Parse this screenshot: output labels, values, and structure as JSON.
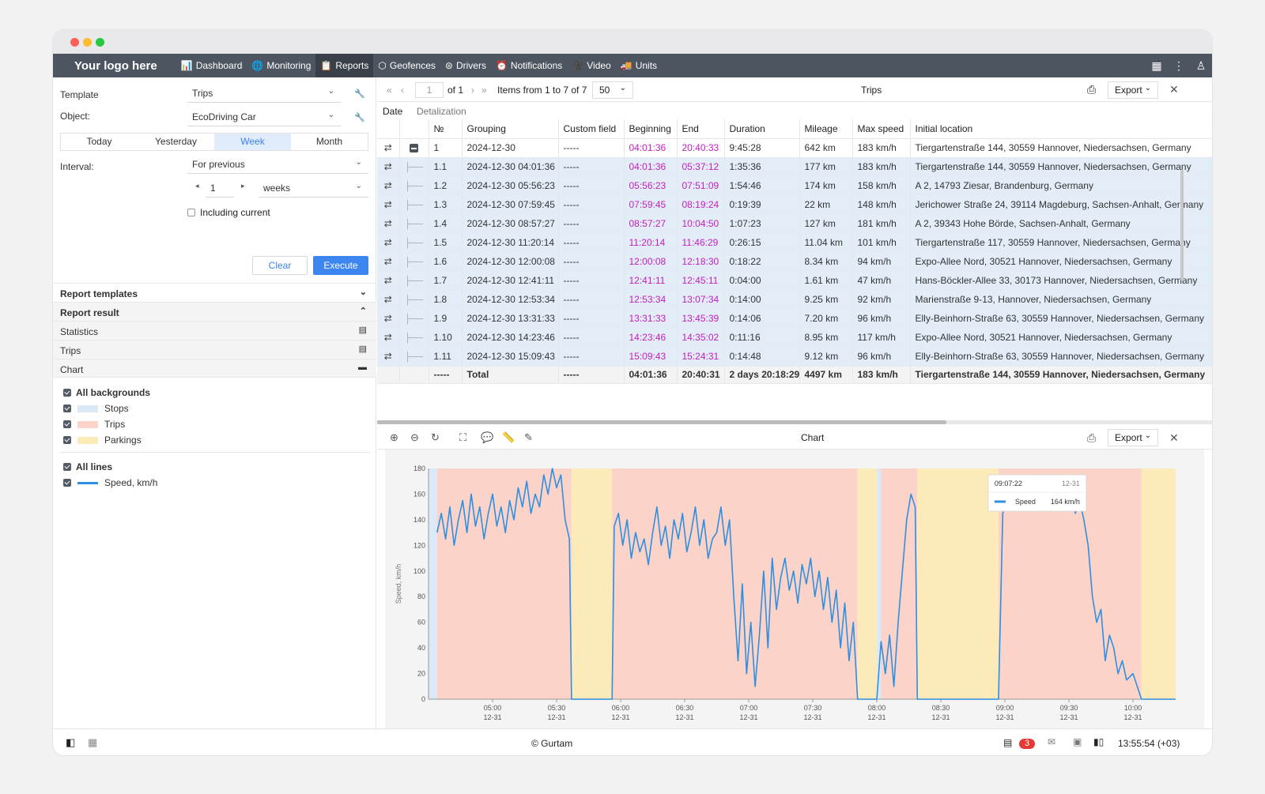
{
  "nav": {
    "logo": "Your logo here",
    "items": [
      {
        "label": "Dashboard",
        "icon": "📊"
      },
      {
        "label": "Monitoring",
        "icon": "🌐"
      },
      {
        "label": "Reports",
        "icon": "📋"
      },
      {
        "label": "Geofences",
        "icon": "⬡"
      },
      {
        "label": "Drivers",
        "icon": "⊜"
      },
      {
        "label": "Notifications",
        "icon": "⏰"
      },
      {
        "label": "Video",
        "icon": "🎥"
      },
      {
        "label": "Units",
        "icon": "🚚"
      }
    ]
  },
  "form": {
    "template_label": "Template",
    "template_value": "Trips",
    "object_label": "Object:",
    "object_value": "EcoDriving Car",
    "periods": [
      "Today",
      "Yesterday",
      "Week",
      "Month"
    ],
    "active_period": "Week",
    "interval_label": "Interval:",
    "interval_value": "For previous",
    "count_value": "1",
    "unit_value": "weeks",
    "including_current": "Including current",
    "clear": "Clear",
    "execute": "Execute"
  },
  "sections": {
    "report_templates": "Report templates",
    "report_result": "Report result",
    "statistics": "Statistics",
    "trips": "Trips",
    "chart": "Chart"
  },
  "legend": {
    "all_backgrounds": "All backgrounds",
    "stops": "Stops",
    "trips": "Trips",
    "parkings": "Parkings",
    "all_lines": "All lines",
    "speed": "Speed, km/h",
    "colors": {
      "stops": "#dbe9f7",
      "trips": "#fbd3c8",
      "parkings": "#fcebb8",
      "speed": "#2f8fe0"
    }
  },
  "table_toolbar": {
    "page": "1",
    "of": "of 1",
    "items": "Items from 1 to 7 of 7",
    "per_page": "50",
    "title": "Trips",
    "export": "Export"
  },
  "tabs": {
    "date": "Date",
    "detalization": "Detalization"
  },
  "columns": [
    "№",
    "Grouping",
    "Custom field",
    "Beginning",
    "End",
    "Duration",
    "Mileage",
    "Max speed",
    "Initial location"
  ],
  "rows": [
    {
      "n": "1",
      "g": "2024-12-30",
      "c": "-----",
      "b": "04:01:36",
      "e": "20:40:33",
      "d": "9:45:28",
      "m": "642 km",
      "s": "183 km/h",
      "l": "Tiergartenstraße 144, 30559 Hannover, Niedersachsen, Germany",
      "parent": true
    },
    {
      "n": "1.1",
      "g": "2024-12-30 04:01:36",
      "c": "-----",
      "b": "04:01:36",
      "e": "05:37:12",
      "d": "1:35:36",
      "m": "177 km",
      "s": "183 km/h",
      "l": "Tiergartenstraße 144, 30559 Hannover, Niedersachsen, Germany"
    },
    {
      "n": "1.2",
      "g": "2024-12-30 05:56:23",
      "c": "-----",
      "b": "05:56:23",
      "e": "07:51:09",
      "d": "1:54:46",
      "m": "174 km",
      "s": "158 km/h",
      "l": "A 2, 14793 Ziesar, Brandenburg, Germany"
    },
    {
      "n": "1.3",
      "g": "2024-12-30 07:59:45",
      "c": "-----",
      "b": "07:59:45",
      "e": "08:19:24",
      "d": "0:19:39",
      "m": "22 km",
      "s": "148 km/h",
      "l": "Jerichower Straße 24, 39114 Magdeburg, Sachsen-Anhalt, Germany"
    },
    {
      "n": "1.4",
      "g": "2024-12-30 08:57:27",
      "c": "-----",
      "b": "08:57:27",
      "e": "10:04:50",
      "d": "1:07:23",
      "m": "127 km",
      "s": "181 km/h",
      "l": "A 2, 39343 Hohe Börde, Sachsen-Anhalt, Germany"
    },
    {
      "n": "1.5",
      "g": "2024-12-30 11:20:14",
      "c": "-----",
      "b": "11:20:14",
      "e": "11:46:29",
      "d": "0:26:15",
      "m": "11.04 km",
      "s": "101 km/h",
      "l": "Tiergartenstraße 117, 30559 Hannover, Niedersachsen, Germany"
    },
    {
      "n": "1.6",
      "g": "2024-12-30 12:00:08",
      "c": "-----",
      "b": "12:00:08",
      "e": "12:18:30",
      "d": "0:18:22",
      "m": "8.34 km",
      "s": "94 km/h",
      "l": "Expo-Allee Nord, 30521 Hannover, Niedersachsen, Germany"
    },
    {
      "n": "1.7",
      "g": "2024-12-30 12:41:11",
      "c": "-----",
      "b": "12:41:11",
      "e": "12:45:11",
      "d": "0:04:00",
      "m": "1.61 km",
      "s": "47 km/h",
      "l": "Hans-Böckler-Allee 33, 30173 Hannover, Niedersachsen, Germany"
    },
    {
      "n": "1.8",
      "g": "2024-12-30 12:53:34",
      "c": "-----",
      "b": "12:53:34",
      "e": "13:07:34",
      "d": "0:14:00",
      "m": "9.25 km",
      "s": "92 km/h",
      "l": "Marienstraße 9-13, Hannover, Niedersachsen, Germany"
    },
    {
      "n": "1.9",
      "g": "2024-12-30 13:31:33",
      "c": "-----",
      "b": "13:31:33",
      "e": "13:45:39",
      "d": "0:14:06",
      "m": "7.20 km",
      "s": "96 km/h",
      "l": "Elly-Beinhorn-Straße 63, 30559 Hannover, Niedersachsen, Germany"
    },
    {
      "n": "1.10",
      "g": "2024-12-30 14:23:46",
      "c": "-----",
      "b": "14:23:46",
      "e": "14:35:02",
      "d": "0:11:16",
      "m": "8.95 km",
      "s": "117 km/h",
      "l": "Expo-Allee Nord, 30521 Hannover, Niedersachsen, Germany"
    },
    {
      "n": "1.11",
      "g": "2024-12-30 15:09:43",
      "c": "-----",
      "b": "15:09:43",
      "e": "15:24:31",
      "d": "0:14:48",
      "m": "9.12 km",
      "s": "96 km/h",
      "l": "Elly-Beinhorn-Straße 63, 30559 Hannover, Niedersachsen, Germany"
    }
  ],
  "total": {
    "n": "-----",
    "g": "Total",
    "c": "-----",
    "b": "04:01:36",
    "e": "20:40:31",
    "d": "2 days 20:18:29",
    "m": "4497 km",
    "s": "183 km/h",
    "l": "Tiergartenstraße 144, 30559 Hannover, Niedersachsen, Germany"
  },
  "chart_toolbar": {
    "title": "Chart",
    "export": "Export"
  },
  "chart_data": {
    "type": "line",
    "ylabel": "Speed, km/h",
    "ylim": [
      0,
      180
    ],
    "yticks": [
      0,
      20,
      40,
      60,
      80,
      100,
      120,
      140,
      160,
      180
    ],
    "xticks": [
      {
        "time": "05:00",
        "date": "12-31"
      },
      {
        "time": "05:30",
        "date": "12-31"
      },
      {
        "time": "06:00",
        "date": "12-31"
      },
      {
        "time": "06:30",
        "date": "12-31"
      },
      {
        "time": "07:00",
        "date": "12-31"
      },
      {
        "time": "07:30",
        "date": "12-31"
      },
      {
        "time": "08:00",
        "date": "12-31"
      },
      {
        "time": "08:30",
        "date": "12-31"
      },
      {
        "time": "09:00",
        "date": "12-31"
      },
      {
        "time": "09:30",
        "date": "12-31"
      },
      {
        "time": "10:00",
        "date": "12-31"
      }
    ],
    "xrange": [
      "04:30",
      "10:20"
    ],
    "backgrounds": [
      {
        "kind": "stops",
        "from": "04:30",
        "to": "04:34"
      },
      {
        "kind": "trips",
        "from": "04:34",
        "to": "05:37"
      },
      {
        "kind": "parkings",
        "from": "05:37",
        "to": "05:56"
      },
      {
        "kind": "trips",
        "from": "05:56",
        "to": "07:51"
      },
      {
        "kind": "parkings",
        "from": "07:51",
        "to": "08:00"
      },
      {
        "kind": "stops",
        "from": "08:00",
        "to": "08:02"
      },
      {
        "kind": "trips",
        "from": "08:02",
        "to": "08:19"
      },
      {
        "kind": "parkings",
        "from": "08:19",
        "to": "08:57"
      },
      {
        "kind": "trips",
        "from": "08:57",
        "to": "10:04"
      },
      {
        "kind": "parkings",
        "from": "10:04",
        "to": "10:20"
      }
    ],
    "series": [
      {
        "name": "Speed",
        "points": [
          [
            "04:34",
            130
          ],
          [
            "04:36",
            145
          ],
          [
            "04:38",
            125
          ],
          [
            "04:40",
            150
          ],
          [
            "04:42",
            120
          ],
          [
            "04:44",
            140
          ],
          [
            "04:46",
            155
          ],
          [
            "04:48",
            130
          ],
          [
            "04:50",
            160
          ],
          [
            "04:52",
            135
          ],
          [
            "04:54",
            150
          ],
          [
            "04:56",
            125
          ],
          [
            "04:58",
            145
          ],
          [
            "05:00",
            160
          ],
          [
            "05:02",
            135
          ],
          [
            "05:04",
            150
          ],
          [
            "05:06",
            130
          ],
          [
            "05:08",
            155
          ],
          [
            "05:10",
            140
          ],
          [
            "05:12",
            165
          ],
          [
            "05:14",
            150
          ],
          [
            "05:16",
            170
          ],
          [
            "05:18",
            145
          ],
          [
            "05:20",
            160
          ],
          [
            "05:22",
            150
          ],
          [
            "05:24",
            175
          ],
          [
            "05:26",
            160
          ],
          [
            "05:28",
            180
          ],
          [
            "05:30",
            165
          ],
          [
            "05:32",
            175
          ],
          [
            "05:34",
            140
          ],
          [
            "05:36",
            125
          ],
          [
            "05:37",
            0
          ],
          [
            "05:56",
            0
          ],
          [
            "05:57",
            135
          ],
          [
            "05:59",
            145
          ],
          [
            "06:01",
            120
          ],
          [
            "06:03",
            140
          ],
          [
            "06:05",
            110
          ],
          [
            "06:07",
            130
          ],
          [
            "06:09",
            115
          ],
          [
            "06:11",
            125
          ],
          [
            "06:13",
            105
          ],
          [
            "06:15",
            130
          ],
          [
            "06:17",
            150
          ],
          [
            "06:19",
            120
          ],
          [
            "06:21",
            135
          ],
          [
            "06:23",
            110
          ],
          [
            "06:25",
            140
          ],
          [
            "06:27",
            125
          ],
          [
            "06:29",
            145
          ],
          [
            "06:31",
            115
          ],
          [
            "06:33",
            130
          ],
          [
            "06:35",
            150
          ],
          [
            "06:37",
            120
          ],
          [
            "06:39",
            140
          ],
          [
            "06:41",
            110
          ],
          [
            "06:43",
            125
          ],
          [
            "06:45",
            130
          ],
          [
            "06:47",
            150
          ],
          [
            "06:49",
            120
          ],
          [
            "06:51",
            140
          ],
          [
            "06:53",
            80
          ],
          [
            "06:55",
            30
          ],
          [
            "06:57",
            90
          ],
          [
            "06:59",
            20
          ],
          [
            "07:01",
            60
          ],
          [
            "07:03",
            10
          ],
          [
            "07:05",
            50
          ],
          [
            "07:07",
            100
          ],
          [
            "07:09",
            40
          ],
          [
            "07:11",
            110
          ],
          [
            "07:13",
            70
          ],
          [
            "07:15",
            95
          ],
          [
            "07:17",
            110
          ],
          [
            "07:19",
            85
          ],
          [
            "07:21",
            100
          ],
          [
            "07:23",
            75
          ],
          [
            "07:25",
            105
          ],
          [
            "07:27",
            90
          ],
          [
            "07:29",
            110
          ],
          [
            "07:31",
            80
          ],
          [
            "07:33",
            100
          ],
          [
            "07:35",
            70
          ],
          [
            "07:37",
            95
          ],
          [
            "07:39",
            60
          ],
          [
            "07:41",
            85
          ],
          [
            "07:43",
            40
          ],
          [
            "07:45",
            75
          ],
          [
            "07:47",
            30
          ],
          [
            "07:49",
            60
          ],
          [
            "07:51",
            0
          ],
          [
            "08:00",
            0
          ],
          [
            "08:02",
            45
          ],
          [
            "08:04",
            20
          ],
          [
            "08:06",
            50
          ],
          [
            "08:08",
            10
          ],
          [
            "08:10",
            60
          ],
          [
            "08:12",
            100
          ],
          [
            "08:14",
            140
          ],
          [
            "08:16",
            160
          ],
          [
            "08:18",
            150
          ],
          [
            "08:19",
            0
          ],
          [
            "08:57",
            0
          ],
          [
            "08:59",
            145
          ],
          [
            "09:01",
            155
          ],
          [
            "09:03",
            170
          ],
          [
            "09:05",
            150
          ],
          [
            "09:07",
            164
          ],
          [
            "09:09",
            170
          ],
          [
            "09:11",
            155
          ],
          [
            "09:13",
            165
          ],
          [
            "09:15",
            150
          ],
          [
            "09:17",
            175
          ],
          [
            "09:19",
            165
          ],
          [
            "09:21",
            150
          ],
          [
            "09:23",
            170
          ],
          [
            "09:25",
            160
          ],
          [
            "09:27",
            175
          ],
          [
            "09:29",
            150
          ],
          [
            "09:31",
            165
          ],
          [
            "09:33",
            145
          ],
          [
            "09:35",
            155
          ],
          [
            "09:37",
            140
          ],
          [
            "09:39",
            120
          ],
          [
            "09:41",
            80
          ],
          [
            "09:43",
            60
          ],
          [
            "09:45",
            70
          ],
          [
            "09:47",
            30
          ],
          [
            "09:49",
            50
          ],
          [
            "09:51",
            40
          ],
          [
            "09:53",
            20
          ],
          [
            "09:55",
            30
          ],
          [
            "09:57",
            15
          ],
          [
            "10:00",
            20
          ],
          [
            "10:02",
            10
          ],
          [
            "10:04",
            0
          ],
          [
            "10:20",
            0
          ]
        ]
      }
    ],
    "tooltip": {
      "time": "09:07:22",
      "date": "12-31",
      "series": "Speed",
      "value": "164 km/h"
    }
  },
  "status": {
    "copyright": "© Gurtam",
    "badge": "3",
    "clock": "13:55:54 (+03)"
  }
}
